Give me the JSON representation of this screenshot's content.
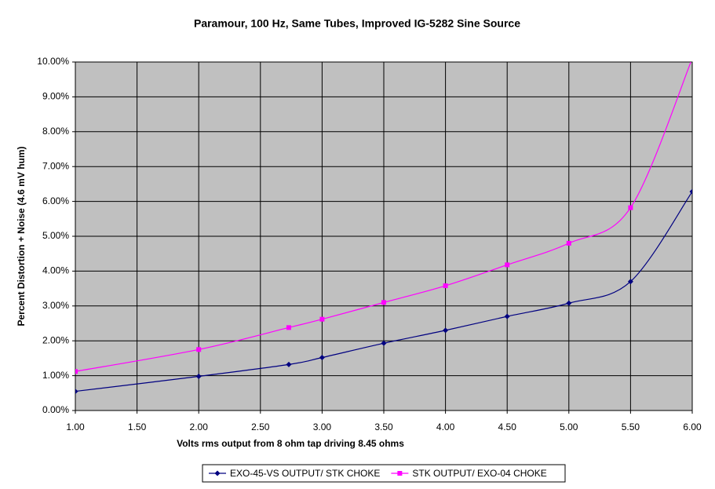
{
  "chart_data": {
    "type": "line",
    "title": "Paramour, 100 Hz, Same Tubes, Improved IG-5282 Sine Source",
    "x_label": "Volts rms output from 8 ohm tap driving 8.45 ohms",
    "y_label": "Percent Distortion + Noise (4.6 mV hum)",
    "x": [
      1.0,
      2.0,
      2.73,
      3.0,
      3.5,
      4.0,
      4.5,
      5.0,
      5.5,
      6.0
    ],
    "series": [
      {
        "name": "EXO-45-VS OUTPUT/ STK CHOKE",
        "color": "#000080",
        "marker": "diamond",
        "values": [
          0.55,
          0.98,
          1.32,
          1.52,
          1.93,
          2.3,
          2.7,
          3.08,
          3.7,
          6.28
        ]
      },
      {
        "name": "STK OUTPUT/ EXO-04 CHOKE",
        "color": "#ff00ff",
        "marker": "square",
        "values": [
          1.12,
          1.75,
          2.38,
          2.62,
          3.1,
          3.58,
          4.18,
          4.8,
          5.82,
          10.1
        ]
      }
    ],
    "xlim": [
      1,
      6
    ],
    "ylim": [
      0,
      10
    ],
    "xticks": [
      {
        "value": 1,
        "label": "1.00"
      },
      {
        "value": 1.5,
        "label": "1.50"
      },
      {
        "value": 2,
        "label": "2.00"
      },
      {
        "value": 2.5,
        "label": "2.50"
      },
      {
        "value": 3,
        "label": "3.00"
      },
      {
        "value": 3.5,
        "label": "3.50"
      },
      {
        "value": 4,
        "label": "4.00"
      },
      {
        "value": 4.5,
        "label": "4.50"
      },
      {
        "value": 5,
        "label": "5.00"
      },
      {
        "value": 5.5,
        "label": "5.50"
      },
      {
        "value": 6,
        "label": "6.00"
      }
    ],
    "yticks": [
      {
        "value": 0,
        "label": "0.00%"
      },
      {
        "value": 1,
        "label": "1.00%"
      },
      {
        "value": 2,
        "label": "2.00%"
      },
      {
        "value": 3,
        "label": "3.00%"
      },
      {
        "value": 4,
        "label": "4.00%"
      },
      {
        "value": 5,
        "label": "5.00%"
      },
      {
        "value": 6,
        "label": "6.00%"
      },
      {
        "value": 7,
        "label": "7.00%"
      },
      {
        "value": 8,
        "label": "8.00%"
      },
      {
        "value": 9,
        "label": "9.00%"
      },
      {
        "value": 10,
        "label": "10.00%"
      }
    ],
    "grid": true,
    "plot_background": "#c0c0c0",
    "legend_position": "bottom"
  }
}
